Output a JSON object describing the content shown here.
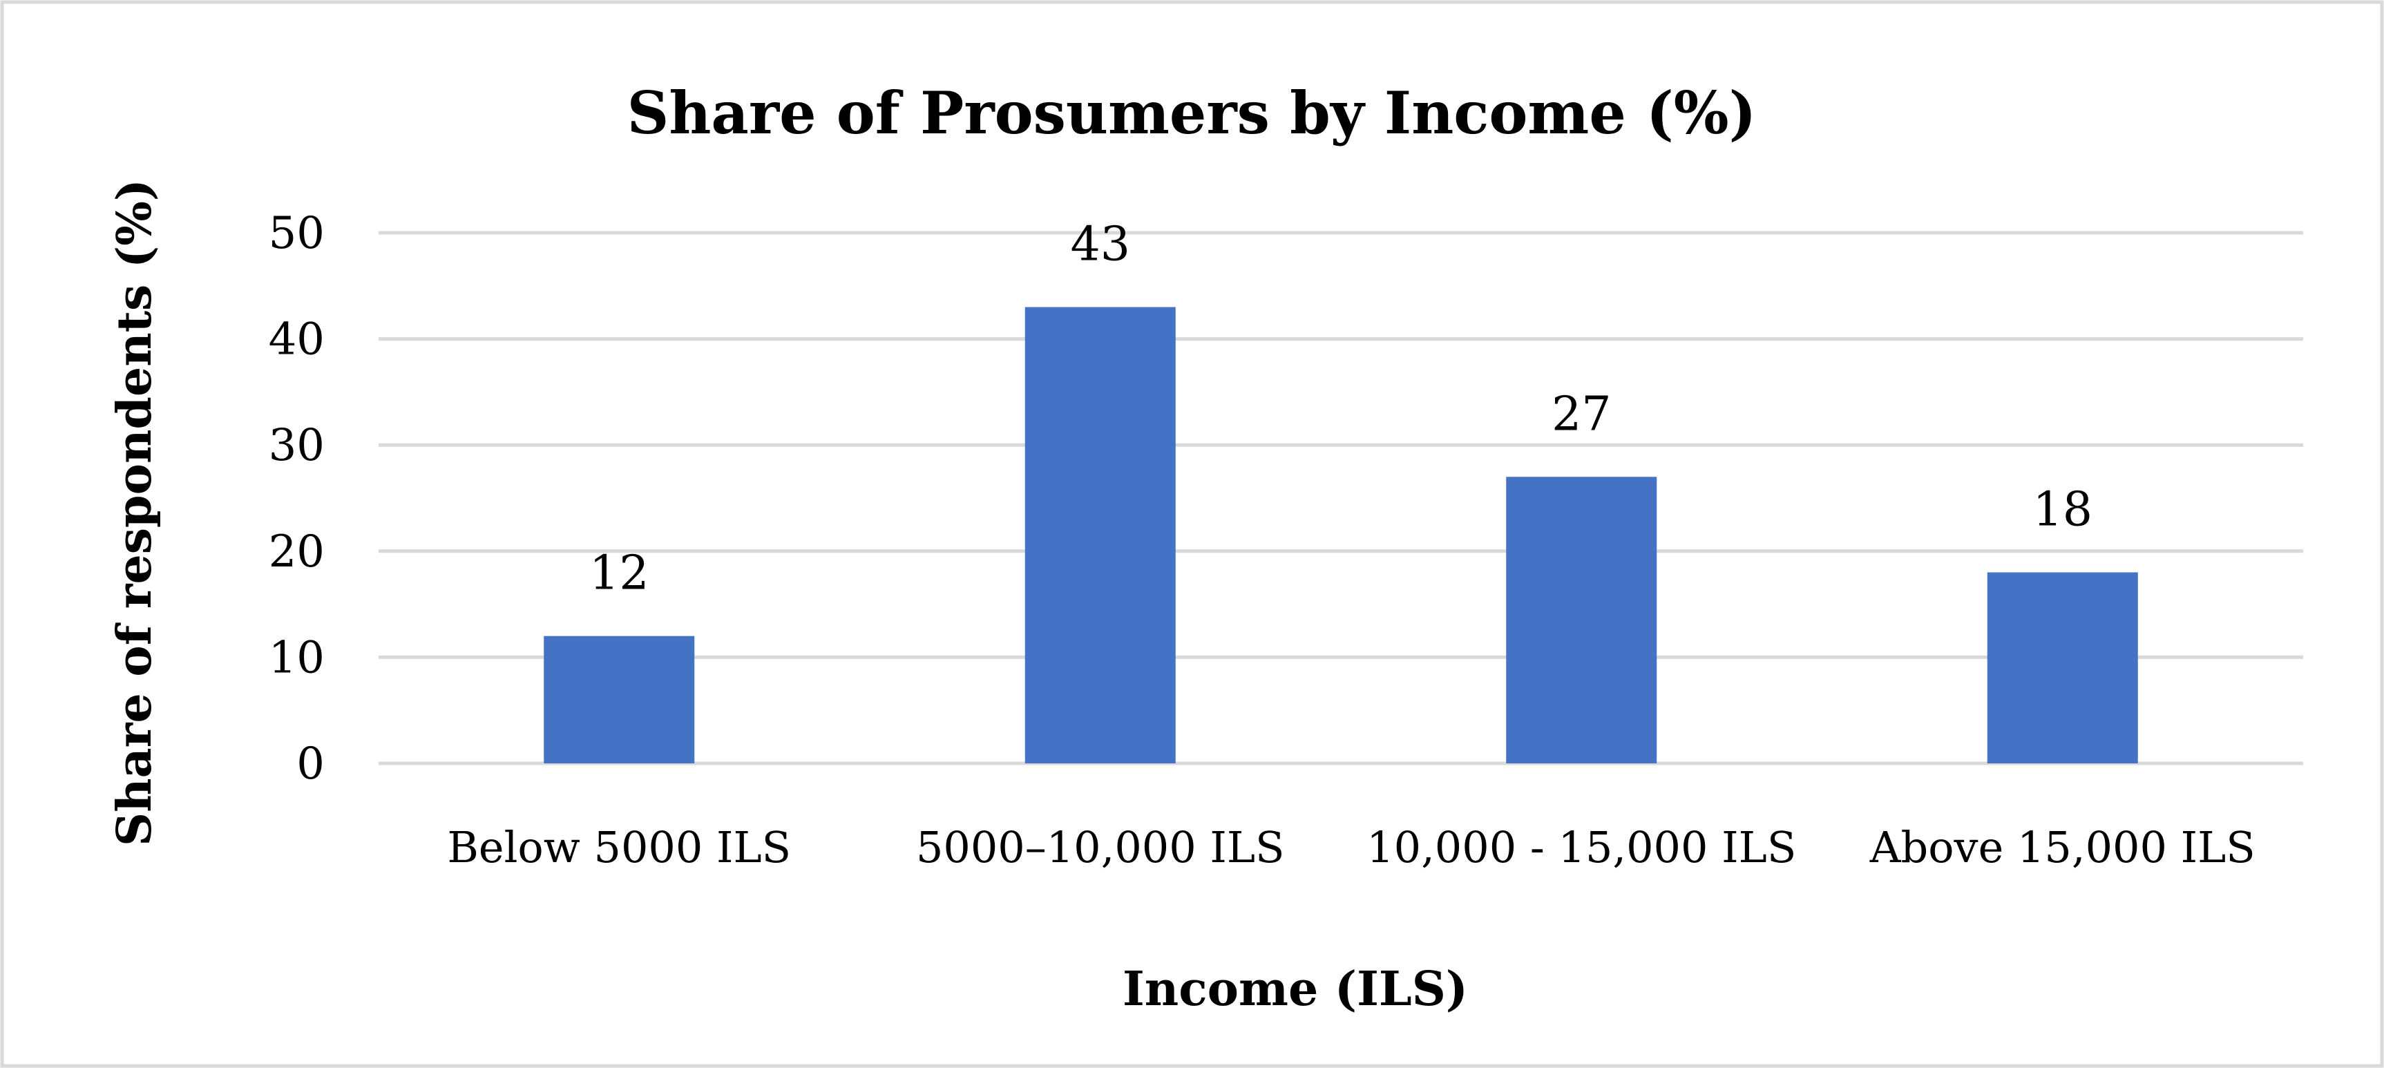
{
  "chart_data": {
    "type": "bar",
    "title": "Share of Prosumers by Income (%)",
    "xlabel": "Income (ILS)",
    "ylabel": "Share of respondents (%)",
    "categories": [
      "Below 5000 ILS",
      "5000–10,000 ILS",
      "10,000 - 15,000 ILS",
      "Above 15,000 ILS"
    ],
    "values": [
      12,
      43,
      27,
      18
    ],
    "data_labels": [
      "12",
      "43",
      "27",
      "18"
    ],
    "yticks": [
      "0",
      "10",
      "20",
      "30",
      "40",
      "50"
    ],
    "ylim": [
      0,
      50
    ],
    "grid": true,
    "legend": "none",
    "colors": {
      "bar": "#4472C4",
      "grid": "#D9D9D9",
      "frame": "#D9D9D9",
      "text": "#000000"
    }
  }
}
